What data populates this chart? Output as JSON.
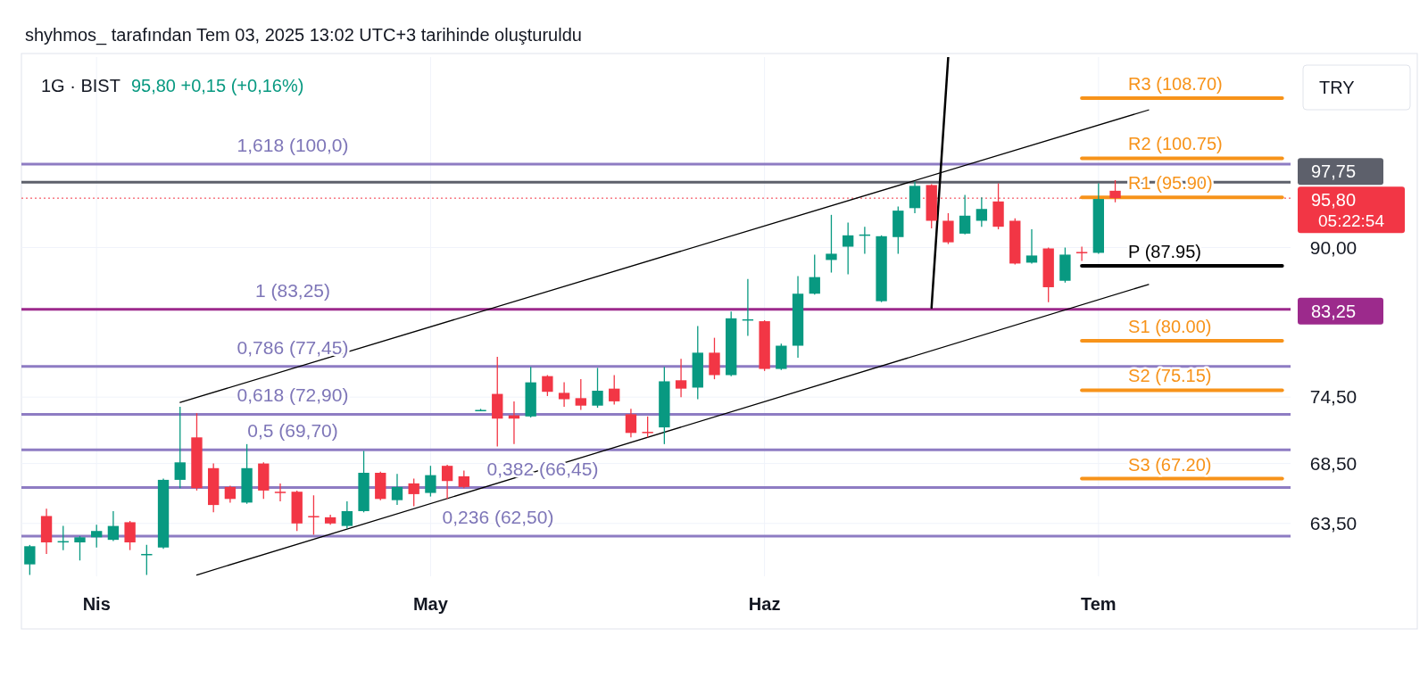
{
  "chart_data": {
    "type": "candlestick",
    "title": "shyhmos_ tarafından Tem 03, 2025 13:02 UTC+3 tarihinde oluşturuldu",
    "subtitle": "1G · BIST",
    "ylabel": "TRY",
    "annotations": [
      "95,80  +0,15 (+0,16%)",
      "05:22:54",
      {
        "text": "1,618 (100,0)",
        "y": 100
      },
      {
        "text": "1 (83,25)",
        "y": 83.25
      },
      {
        "text": "0,786 (77,45)",
        "y": 77.45
      },
      {
        "text": "0,618 (72,90)",
        "y": 72.9
      },
      {
        "text": "0,5 (69,70)",
        "y": 69.7
      },
      {
        "text": "0,382 (66,45)",
        "y": 66.45
      },
      {
        "text": "0,236 (62,50)",
        "y": 62.5
      }
    ],
    "categories": [
      null,
      null,
      null,
      null,
      "Nis",
      null,
      null,
      null,
      null,
      null,
      null,
      null,
      null,
      null,
      null,
      null,
      null,
      null,
      null,
      null,
      null,
      null,
      null,
      null,
      "May",
      null,
      null,
      null,
      null,
      null,
      null,
      null,
      null,
      null,
      null,
      null,
      null,
      null,
      null,
      null,
      null,
      null,
      null,
      null,
      "Haz",
      null,
      null,
      null,
      null,
      null,
      null,
      null,
      null,
      null,
      null,
      null,
      null,
      null,
      null,
      null,
      null,
      null,
      null,
      null,
      "Tem",
      null,
      null,
      null,
      null,
      null,
      null,
      null,
      null,
      null,
      null,
      null
    ],
    "ohlc": [
      [
        60.3,
        61.8,
        59.5,
        61.7
      ],
      [
        64.1,
        64.7,
        61.1,
        62.0
      ],
      [
        62.0,
        63.3,
        61.4,
        62.1
      ],
      [
        62.0,
        62.5,
        60.6,
        62.4
      ],
      [
        62.4,
        63.4,
        61.6,
        62.9
      ],
      [
        62.2,
        64.5,
        62.1,
        63.3
      ],
      [
        63.6,
        63.7,
        61.4,
        62.0
      ],
      [
        61.0,
        61.8,
        59.5,
        61.1
      ],
      [
        61.6,
        67.2,
        61.5,
        67.1
      ],
      [
        67.1,
        73.6,
        66.4,
        68.6
      ],
      [
        70.8,
        73.0,
        66.2,
        66.4
      ],
      [
        68.1,
        68.5,
        64.4,
        65.0
      ],
      [
        66.5,
        66.6,
        65.2,
        65.5
      ],
      [
        65.2,
        70.2,
        65.1,
        68.1
      ],
      [
        68.5,
        68.6,
        65.5,
        66.2
      ],
      [
        66.1,
        66.8,
        65.3,
        66.0
      ],
      [
        66.1,
        66.2,
        62.9,
        63.5
      ],
      [
        64.1,
        65.8,
        62.6,
        64.0
      ],
      [
        64.0,
        64.2,
        63.4,
        63.5
      ],
      [
        63.3,
        65.3,
        63.1,
        64.5
      ],
      [
        64.5,
        69.6,
        64.4,
        67.7
      ],
      [
        67.7,
        67.8,
        65.4,
        65.5
      ],
      [
        65.4,
        67.6,
        65.0,
        66.5
      ],
      [
        66.8,
        67.2,
        64.9,
        65.9
      ],
      [
        66.0,
        68.3,
        65.7,
        67.5
      ],
      [
        68.3,
        68.4,
        65.5,
        67.0
      ],
      [
        67.4,
        67.9,
        66.4,
        66.5
      ],
      [
        73.2,
        73.4,
        73.2,
        73.3
      ],
      [
        74.8,
        78.4,
        70.0,
        72.5
      ],
      [
        72.8,
        74.1,
        70.2,
        72.5
      ],
      [
        72.7,
        77.4,
        72.6,
        75.9
      ],
      [
        76.5,
        76.6,
        74.6,
        75.0
      ],
      [
        74.9,
        75.9,
        73.6,
        74.3
      ],
      [
        74.4,
        76.2,
        73.3,
        73.7
      ],
      [
        73.7,
        77.3,
        73.5,
        75.1
      ],
      [
        75.3,
        76.6,
        73.8,
        74.1
      ],
      [
        72.9,
        73.4,
        70.8,
        71.2
      ],
      [
        71.3,
        72.7,
        70.8,
        71.2
      ],
      [
        71.7,
        77.4,
        70.2,
        76.0
      ],
      [
        76.1,
        78.2,
        74.5,
        75.3
      ],
      [
        75.4,
        81.5,
        74.3,
        78.8
      ],
      [
        78.8,
        80.3,
        76.2,
        76.6
      ],
      [
        76.6,
        83.0,
        76.5,
        82.3
      ],
      [
        82.1,
        86.5,
        80.5,
        82.2
      ],
      [
        82.0,
        82.1,
        77.0,
        77.2
      ],
      [
        77.2,
        79.7,
        77.1,
        79.5
      ],
      [
        79.5,
        86.8,
        78.3,
        84.9
      ],
      [
        84.9,
        89.2,
        84.8,
        86.7
      ],
      [
        88.6,
        93.8,
        87.2,
        89.3
      ],
      [
        90.1,
        92.9,
        87.0,
        91.4
      ],
      [
        91.4,
        92.4,
        89.3,
        91.5
      ],
      [
        84.1,
        91.4,
        84.0,
        91.3
      ],
      [
        91.2,
        94.8,
        89.3,
        94.3
      ],
      [
        94.6,
        97.8,
        94.0,
        97.3
      ],
      [
        97.4,
        97.5,
        92.2,
        93.1
      ],
      [
        93.1,
        94.0,
        90.4,
        90.6
      ],
      [
        91.6,
        96.2,
        91.5,
        93.7
      ],
      [
        93.1,
        95.9,
        92.4,
        94.5
      ],
      [
        95.4,
        97.6,
        92.1,
        92.4
      ],
      [
        93.1,
        93.4,
        88.1,
        88.2
      ],
      [
        88.3,
        92.1,
        88.2,
        89.1
      ],
      [
        89.9,
        90.0,
        84.0,
        85.6
      ],
      [
        86.3,
        90.0,
        86.1,
        89.2
      ],
      [
        89.5,
        90.1,
        88.5,
        89.4
      ],
      [
        89.4,
        97.6,
        89.3,
        95.7
      ],
      [
        96.7,
        98.0,
        95.3,
        95.8
      ],
      null,
      null,
      null,
      null,
      null,
      null,
      null,
      null,
      null,
      null
    ],
    "colors": [
      "#089981",
      "#f23645",
      "#089981",
      "#089981",
      "#089981",
      "#089981",
      "#f23645",
      "#089981",
      "#089981",
      "#089981",
      "#f23645",
      "#f23645",
      "#f23645",
      "#089981",
      "#f23645",
      "#f23645",
      "#f23645",
      "#f23645",
      "#f23645",
      "#089981",
      "#089981",
      "#f23645",
      "#089981",
      "#f23645",
      "#089981",
      "#f23645",
      "#f23645",
      "#089981",
      "#f23645",
      "#f23645",
      "#089981",
      "#f23645",
      "#f23645",
      "#f23645",
      "#089981",
      "#f23645",
      "#f23645",
      "#f23645",
      "#089981",
      "#f23645",
      "#089981",
      "#f23645",
      "#089981",
      "#089981",
      "#f23645",
      "#089981",
      "#089981",
      "#089981",
      "#089981",
      "#089981",
      "#089981",
      "#089981",
      "#089981",
      "#089981",
      "#f23645",
      "#f23645",
      "#089981",
      "#089981",
      "#f23645",
      "#f23645",
      "#089981",
      "#f23645",
      "#089981",
      "#f23645",
      "#089981",
      "#f23645",
      null,
      null,
      null,
      null,
      null,
      null,
      null,
      null,
      null,
      null
    ],
    "series": [
      {
        "type": "line",
        "values": [
          null,
          null,
          null,
          null,
          null,
          null,
          null,
          null,
          null,
          74.0,
          null,
          null,
          null,
          null,
          null,
          null,
          null,
          null,
          null,
          null,
          null,
          null,
          null,
          null,
          null,
          null,
          null,
          null,
          null,
          null,
          null,
          null,
          null,
          null,
          null,
          null,
          null,
          null,
          null,
          null,
          null,
          null,
          null,
          null,
          null,
          null,
          null,
          null,
          null,
          null,
          null,
          null,
          null,
          null,
          null,
          null,
          null,
          null,
          null,
          null,
          null,
          null,
          null,
          null,
          null,
          null,
          null,
          107.1,
          null,
          null,
          null,
          null,
          null,
          null,
          null,
          null
        ],
        "color": "#000000"
      },
      {
        "type": "line",
        "values": [
          null,
          null,
          null,
          null,
          null,
          null,
          null,
          null,
          null,
          null,
          59.5,
          null,
          null,
          null,
          null,
          null,
          null,
          null,
          null,
          null,
          null,
          null,
          null,
          null,
          null,
          null,
          null,
          null,
          null,
          null,
          null,
          null,
          null,
          null,
          null,
          null,
          null,
          null,
          null,
          null,
          null,
          null,
          null,
          null,
          null,
          null,
          null,
          null,
          null,
          null,
          null,
          null,
          null,
          null,
          null,
          null,
          null,
          null,
          null,
          null,
          null,
          null,
          null,
          null,
          null,
          null,
          null,
          85.9,
          null,
          null,
          null,
          null,
          null,
          null,
          null,
          null
        ],
        "color": "#000000"
      },
      {
        "type": "line",
        "values": [
          null,
          null,
          null,
          null,
          null,
          null,
          null,
          null,
          null,
          null,
          null,
          null,
          null,
          null,
          null,
          null,
          null,
          null,
          null,
          null,
          null,
          null,
          null,
          null,
          null,
          null,
          null,
          null,
          null,
          null,
          null,
          null,
          null,
          null,
          null,
          null,
          null,
          null,
          null,
          null,
          null,
          null,
          null,
          null,
          null,
          null,
          null,
          null,
          null,
          null,
          null,
          null,
          null,
          null,
          83.4,
          114.5,
          null,
          null,
          null,
          null,
          null,
          null,
          null,
          null,
          null,
          null,
          null,
          null,
          null,
          null,
          null,
          null,
          null,
          null,
          null,
          null
        ],
        "color": "#000000"
      },
      {
        "type": "line",
        "name": "R3 (108.70)",
        "values": [
          null,
          null,
          null,
          null,
          null,
          null,
          null,
          null,
          null,
          null,
          null,
          null,
          null,
          null,
          null,
          null,
          null,
          null,
          null,
          null,
          null,
          null,
          null,
          null,
          null,
          null,
          null,
          null,
          null,
          null,
          null,
          null,
          null,
          null,
          null,
          null,
          null,
          null,
          null,
          null,
          null,
          null,
          null,
          null,
          null,
          null,
          null,
          null,
          null,
          null,
          null,
          null,
          null,
          null,
          null,
          null,
          null,
          null,
          null,
          null,
          null,
          null,
          null,
          108.7,
          null,
          null,
          null,
          null,
          null,
          null,
          null,
          null,
          null,
          null,
          null,
          108.7
        ],
        "color": "#f7931a"
      },
      {
        "type": "line",
        "name": "R2 (100.75)",
        "values": [
          null,
          null,
          null,
          null,
          null,
          null,
          null,
          null,
          null,
          null,
          null,
          null,
          null,
          null,
          null,
          null,
          null,
          null,
          null,
          null,
          null,
          null,
          null,
          null,
          null,
          null,
          null,
          null,
          null,
          null,
          null,
          null,
          null,
          null,
          null,
          null,
          null,
          null,
          null,
          null,
          null,
          null,
          null,
          null,
          null,
          null,
          null,
          null,
          null,
          null,
          null,
          null,
          null,
          null,
          null,
          null,
          null,
          null,
          null,
          null,
          null,
          null,
          null,
          100.75,
          null,
          null,
          null,
          null,
          null,
          null,
          null,
          null,
          null,
          null,
          null,
          100.75
        ],
        "color": "#f7931a"
      },
      {
        "type": "line",
        "name": "R1 (95.90)",
        "values": [
          null,
          null,
          null,
          null,
          null,
          null,
          null,
          null,
          null,
          null,
          null,
          null,
          null,
          null,
          null,
          null,
          null,
          null,
          null,
          null,
          null,
          null,
          null,
          null,
          null,
          null,
          null,
          null,
          null,
          null,
          null,
          null,
          null,
          null,
          null,
          null,
          null,
          null,
          null,
          null,
          null,
          null,
          null,
          null,
          null,
          null,
          null,
          null,
          null,
          null,
          null,
          null,
          null,
          null,
          null,
          null,
          null,
          null,
          null,
          null,
          null,
          null,
          null,
          95.9,
          null,
          null,
          null,
          null,
          null,
          null,
          null,
          null,
          null,
          null,
          null,
          95.9
        ],
        "color": "#f7931a"
      },
      {
        "type": "line",
        "name": "P (87.95)",
        "values": [
          null,
          null,
          null,
          null,
          null,
          null,
          null,
          null,
          null,
          null,
          null,
          null,
          null,
          null,
          null,
          null,
          null,
          null,
          null,
          null,
          null,
          null,
          null,
          null,
          null,
          null,
          null,
          null,
          null,
          null,
          null,
          null,
          null,
          null,
          null,
          null,
          null,
          null,
          null,
          null,
          null,
          null,
          null,
          null,
          null,
          null,
          null,
          null,
          null,
          null,
          null,
          null,
          null,
          null,
          null,
          null,
          null,
          null,
          null,
          null,
          null,
          null,
          null,
          87.95,
          null,
          null,
          null,
          null,
          null,
          null,
          null,
          null,
          null,
          null,
          null,
          87.95
        ],
        "color": "#000000"
      },
      {
        "type": "line",
        "name": "S1 (80.00)",
        "values": [
          null,
          null,
          null,
          null,
          null,
          null,
          null,
          null,
          null,
          null,
          null,
          null,
          null,
          null,
          null,
          null,
          null,
          null,
          null,
          null,
          null,
          null,
          null,
          null,
          null,
          null,
          null,
          null,
          null,
          null,
          null,
          null,
          null,
          null,
          null,
          null,
          null,
          null,
          null,
          null,
          null,
          null,
          null,
          null,
          null,
          null,
          null,
          null,
          null,
          null,
          null,
          null,
          null,
          null,
          null,
          null,
          null,
          null,
          null,
          null,
          null,
          null,
          null,
          80,
          null,
          null,
          null,
          null,
          null,
          null,
          null,
          null,
          null,
          null,
          null,
          80
        ],
        "color": "#f7931a"
      },
      {
        "type": "line",
        "name": "S2 (75.15)",
        "values": [
          null,
          null,
          null,
          null,
          null,
          null,
          null,
          null,
          null,
          null,
          null,
          null,
          null,
          null,
          null,
          null,
          null,
          null,
          null,
          null,
          null,
          null,
          null,
          null,
          null,
          null,
          null,
          null,
          null,
          null,
          null,
          null,
          null,
          null,
          null,
          null,
          null,
          null,
          null,
          null,
          null,
          null,
          null,
          null,
          null,
          null,
          null,
          null,
          null,
          null,
          null,
          null,
          null,
          null,
          null,
          null,
          null,
          null,
          null,
          null,
          null,
          null,
          null,
          75.15,
          null,
          null,
          null,
          null,
          null,
          null,
          null,
          null,
          null,
          null,
          null,
          75.15
        ],
        "color": "#f7931a"
      },
      {
        "type": "line",
        "name": "S3 (67.20)",
        "values": [
          null,
          null,
          null,
          null,
          null,
          null,
          null,
          null,
          null,
          null,
          null,
          null,
          null,
          null,
          null,
          null,
          null,
          null,
          null,
          null,
          null,
          null,
          null,
          null,
          null,
          null,
          null,
          null,
          null,
          null,
          null,
          null,
          null,
          null,
          null,
          null,
          null,
          null,
          null,
          null,
          null,
          null,
          null,
          null,
          null,
          null,
          null,
          null,
          null,
          null,
          null,
          null,
          null,
          null,
          null,
          null,
          null,
          null,
          null,
          null,
          null,
          null,
          null,
          67.2,
          null,
          null,
          null,
          null,
          null,
          null,
          null,
          null,
          null,
          null,
          null,
          67.2
        ],
        "color": "#f7931a"
      }
    ],
    "ref_lines": [
      {
        "axis": "y",
        "value": 100,
        "color": "#8e7cc3"
      },
      {
        "axis": "y",
        "value": 83.25,
        "label": "83,25",
        "color": "#9c2a8c"
      },
      {
        "axis": "y",
        "value": 77.45,
        "color": "#8e7cc3"
      },
      {
        "axis": "y",
        "value": 72.9,
        "color": "#8e7cc3"
      },
      {
        "axis": "y",
        "value": 69.7,
        "color": "#8e7cc3"
      },
      {
        "axis": "y",
        "value": 66.45,
        "color": "#8e7cc3"
      },
      {
        "axis": "y",
        "value": 62.5,
        "color": "#8e7cc3"
      },
      {
        "axis": "y",
        "value": 97.75,
        "label": "97,75",
        "color": "#5d606b"
      },
      {
        "axis": "y",
        "value": 95.8,
        "label": "95,80",
        "color": "#f23645",
        "line_style": "dotted"
      }
    ],
    "ylim": [
      59.4,
      114.5
    ],
    "yticks": [
      {
        "value": 63.5,
        "label": "63,50"
      },
      {
        "value": 68.5,
        "label": "68,50"
      },
      {
        "value": 74.5,
        "label": "74,50"
      },
      {
        "value": 90,
        "label": "90,00"
      }
    ],
    "log": true,
    "grid": true
  }
}
